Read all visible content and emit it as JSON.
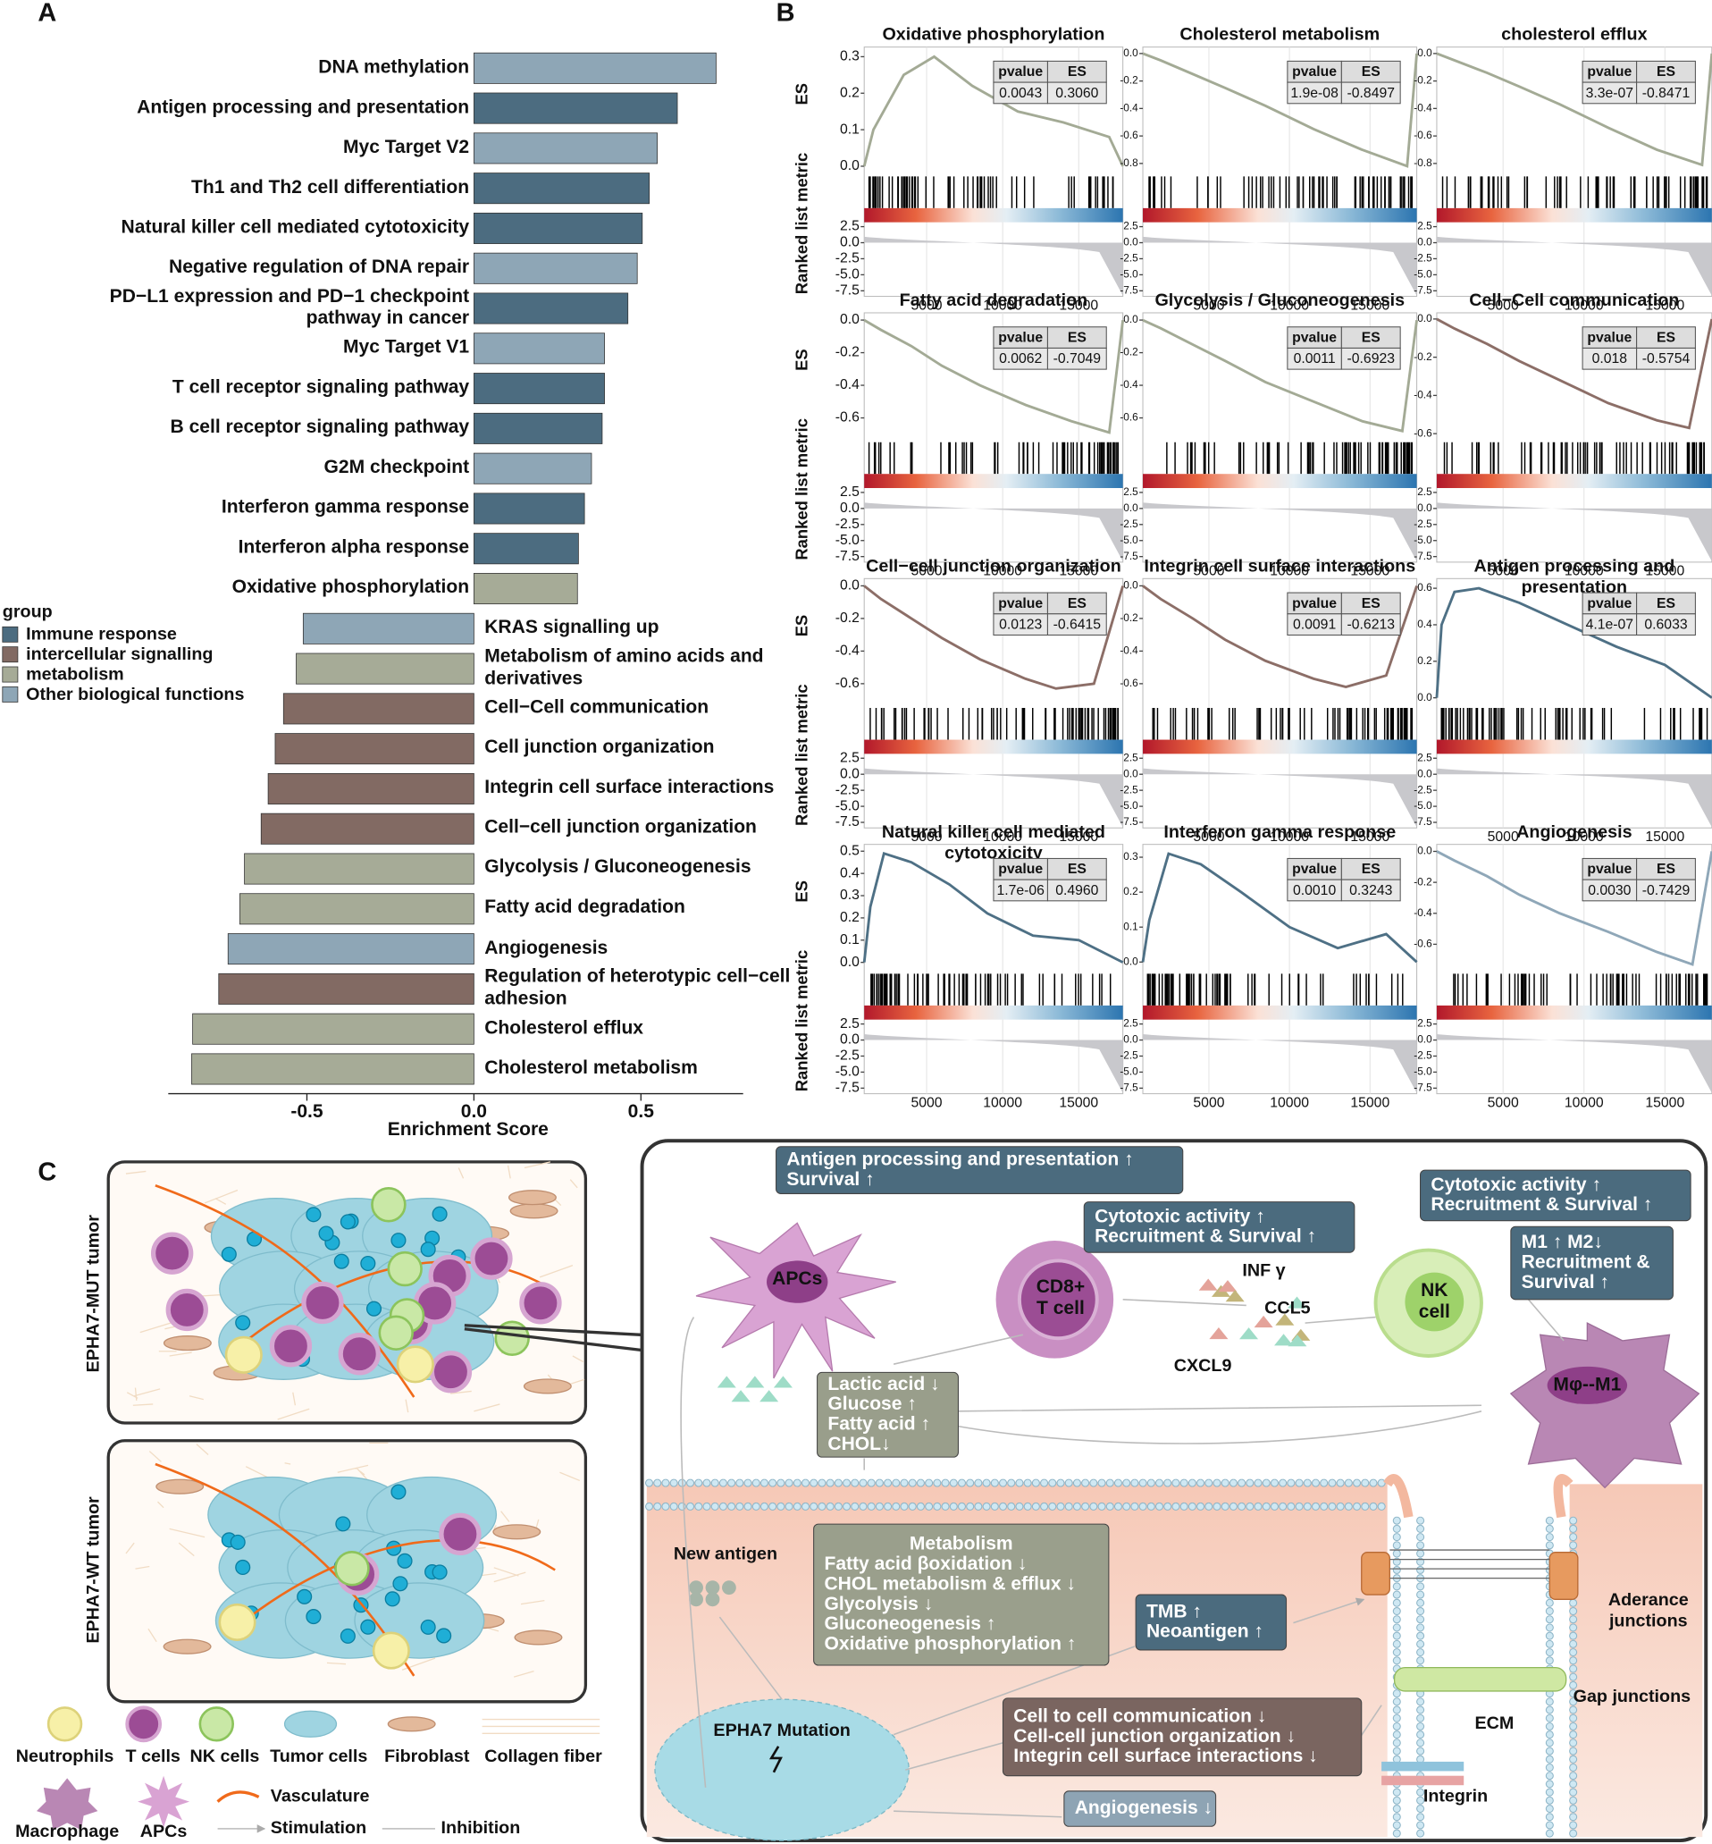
{
  "panel_labels": [
    "A",
    "B",
    "C"
  ],
  "chart_data": [
    {
      "type": "bar",
      "categories": [
        "DNA methylation",
        "Antigen processing and presentation",
        "Myc Target V2",
        "Th1 and Th2 cell differentiation",
        "Natural killer cell mediated cytotoxicity",
        "Negative regulation of DNA repair",
        "PD−L1 expression and PD−1 checkpoint pathway in cancer",
        "Myc Target V1",
        "T cell receptor signaling pathway",
        "B cell receptor signaling pathway",
        "G2M checkpoint",
        "Interferon gamma response",
        "Interferon alpha response",
        "Oxidative phosphorylation",
        "KRAS signalling up",
        "Metabolism of amino acids and derivatives",
        "Cell−Cell communication",
        "Cell junction organization",
        "Integrin cell surface interactions",
        "Cell−cell junction organization",
        "Glycolysis / Gluconeogenesis",
        "Fatty acid degradation",
        "Angiogenesis",
        "Regulation of heterotypic cell−cell adhesion",
        "Cholesterol efflux",
        "Cholesterol metabolism"
      ],
      "series": [
        {
          "name": "Immune response",
          "color": "#4c6c80",
          "values": [
            null,
            0.609,
            null,
            0.525,
            0.504,
            null,
            0.461,
            null,
            0.391,
            0.384,
            null,
            0.331,
            0.313,
            null,
            null,
            null,
            null,
            null,
            null,
            null,
            null,
            null,
            null,
            null,
            null,
            null
          ]
        },
        {
          "name": "intercellular signalling",
          "color": "#826a63",
          "values": [
            null,
            null,
            null,
            null,
            null,
            null,
            null,
            null,
            null,
            null,
            null,
            null,
            null,
            null,
            null,
            null,
            -0.57,
            -0.595,
            -0.616,
            -0.637,
            null,
            null,
            null,
            -0.764,
            null,
            null
          ]
        },
        {
          "name": "metabolism",
          "color": "#a6ab97",
          "values": [
            null,
            null,
            null,
            null,
            null,
            null,
            null,
            null,
            null,
            null,
            null,
            null,
            null,
            0.31,
            null,
            -0.532,
            null,
            null,
            null,
            null,
            -0.687,
            -0.701,
            null,
            null,
            -0.842,
            -0.845
          ]
        },
        {
          "name": "Other biological functions",
          "color": "#8ea6b6",
          "values": [
            0.725,
            null,
            0.549,
            null,
            null,
            0.489,
            null,
            0.391,
            null,
            null,
            0.352,
            null,
            null,
            null,
            -0.511,
            null,
            null,
            null,
            null,
            null,
            null,
            null,
            -0.736,
            null,
            null,
            null
          ]
        }
      ],
      "legend_title": "group",
      "xlim": [
        -0.915,
        0.806
      ],
      "xticks": [
        -0.5,
        {
          "value": 0,
          "label": "0.0"
        },
        0.5
      ],
      "xlabel": "Enrichment Score"
    },
    {
      "type": "line",
      "title": "Oxidative phosphorylation",
      "color": "#a3aa95",
      "table_row": [
        "0.0043",
        "0.3060"
      ],
      "ylim": [
        -0.015,
        0.32
      ],
      "yticks": [
        {
          "value": 0,
          "label": "0.0"
        },
        0.1,
        0.2,
        0.3
      ],
      "x": [
        900,
        1500,
        3500,
        5500,
        8000,
        11000,
        14000,
        17000,
        17900
      ],
      "values": [
        0,
        0.1,
        0.25,
        0.3,
        0.22,
        0.15,
        0.12,
        0.08,
        0
      ]
    },
    {
      "type": "line",
      "title": "Cholesterol metabolism",
      "color": "#a3aa95",
      "table_row": [
        "1.9e-08",
        "-0.8497"
      ],
      "ylim": [
        -0.86,
        0.03
      ],
      "yticks": [
        {
          "value": 0,
          "label": "0.0"
        },
        -0.2,
        -0.4,
        -0.6,
        -0.8
      ],
      "x": [
        900,
        2000,
        4000,
        6000,
        8500,
        11500,
        14500,
        17300,
        17900
      ],
      "values": [
        0,
        -0.05,
        -0.15,
        -0.25,
        -0.38,
        -0.55,
        -0.7,
        -0.82,
        0
      ]
    },
    {
      "type": "line",
      "title": "cholesterol efflux",
      "color": "#a3aa95",
      "table_row": [
        "3.3e-07",
        "-0.8471"
      ],
      "ylim": [
        -0.86,
        0.03
      ],
      "yticks": [
        {
          "value": 0,
          "label": "0.0"
        },
        -0.2,
        -0.4,
        -0.6,
        -0.8
      ],
      "x": [
        900,
        2000,
        4000,
        6000,
        8500,
        11500,
        14500,
        17300,
        17900
      ],
      "values": [
        0,
        -0.05,
        -0.14,
        -0.24,
        -0.37,
        -0.54,
        -0.7,
        -0.81,
        0
      ]
    },
    {
      "type": "line",
      "title": "Fatty acid degradation",
      "color": "#a3aa95",
      "table_row": [
        "0.0062",
        "-0.7049"
      ],
      "ylim": [
        -0.72,
        0.03
      ],
      "yticks": [
        {
          "value": 0,
          "label": "0.0"
        },
        -0.2,
        -0.4,
        -0.6
      ],
      "x": [
        900,
        2000,
        4000,
        6000,
        8500,
        11500,
        14500,
        17000,
        17900
      ],
      "values": [
        0,
        -0.06,
        -0.16,
        -0.28,
        -0.4,
        -0.52,
        -0.62,
        -0.69,
        0
      ]
    },
    {
      "type": "line",
      "title": "Glycolysis / Gluconeogenesis",
      "color": "#a3aa95",
      "table_row": [
        "0.0011",
        "-0.6923"
      ],
      "ylim": [
        -0.72,
        0.03
      ],
      "yticks": [
        {
          "value": 0,
          "label": "0.0"
        },
        -0.2,
        -0.4,
        -0.6
      ],
      "x": [
        900,
        2000,
        4000,
        6000,
        8500,
        11500,
        14500,
        17000,
        17900
      ],
      "values": [
        0,
        -0.05,
        -0.15,
        -0.25,
        -0.38,
        -0.5,
        -0.62,
        -0.68,
        0
      ]
    },
    {
      "type": "line",
      "title": "Cell−Cell communication",
      "color": "#8c6e67",
      "table_row": [
        "0.018",
        "-0.5754"
      ],
      "ylim": [
        -0.62,
        0.02
      ],
      "yticks": [
        {
          "value": 0,
          "label": "0.0"
        },
        -0.2,
        -0.4,
        -0.6
      ],
      "x": [
        900,
        2000,
        4000,
        6000,
        8500,
        11500,
        14500,
        16500,
        17900
      ],
      "values": [
        0,
        -0.05,
        -0.13,
        -0.22,
        -0.32,
        -0.44,
        -0.53,
        -0.57,
        0
      ]
    },
    {
      "type": "line",
      "title": "Cell−cell junction organization",
      "color": "#8c6e67",
      "table_row": [
        "0.0123",
        "-0.6415"
      ],
      "ylim": [
        -0.72,
        0.03
      ],
      "yticks": [
        {
          "value": 0,
          "label": "0.0"
        },
        -0.2,
        -0.4,
        -0.6
      ],
      "x": [
        900,
        2000,
        4000,
        6000,
        8500,
        11500,
        13500,
        16000,
        17900
      ],
      "values": [
        0,
        -0.08,
        -0.2,
        -0.32,
        -0.45,
        -0.57,
        -0.63,
        -0.6,
        0
      ]
    },
    {
      "type": "line",
      "title": "Integrin cell surface interactions",
      "color": "#8c6e67",
      "table_row": [
        "0.0091",
        "-0.6213"
      ],
      "ylim": [
        -0.72,
        0.03
      ],
      "yticks": [
        {
          "value": 0,
          "label": "0.0"
        },
        -0.2,
        -0.4,
        -0.6
      ],
      "x": [
        900,
        2000,
        4000,
        6000,
        8500,
        11500,
        13500,
        16000,
        17900
      ],
      "values": [
        0,
        -0.08,
        -0.2,
        -0.33,
        -0.46,
        -0.57,
        -0.62,
        -0.55,
        0
      ]
    },
    {
      "type": "line",
      "title": "Antigen processing and presentation",
      "color": "#4e7085",
      "table_row": [
        "4.1e-07",
        "0.6033"
      ],
      "ylim": [
        -0.03,
        0.64
      ],
      "yticks": [
        {
          "value": 0,
          "label": "0.0"
        },
        0.2,
        0.4,
        0.6
      ],
      "x": [
        900,
        1200,
        2000,
        3500,
        6000,
        9000,
        12000,
        15000,
        17900
      ],
      "values": [
        0,
        0.4,
        0.58,
        0.6,
        0.52,
        0.4,
        0.28,
        0.18,
        0
      ]
    },
    {
      "type": "line",
      "title": "Natural killer cell mediated cytotoxicity",
      "color": "#4e7085",
      "table_row": [
        "1.7e-06",
        "0.4960"
      ],
      "ylim": [
        -0.03,
        0.52
      ],
      "yticks": [
        {
          "value": 0,
          "label": "0.0"
        },
        0.1,
        0.2,
        0.3,
        0.4,
        0.5
      ],
      "x": [
        900,
        1300,
        2200,
        4000,
        6500,
        9000,
        12000,
        15000,
        17900
      ],
      "values": [
        0,
        0.25,
        0.49,
        0.45,
        0.35,
        0.22,
        0.12,
        0.1,
        0
      ]
    },
    {
      "type": "line",
      "title": "Interferon gamma response",
      "color": "#4e7085",
      "table_row": [
        "0.0010",
        "0.3243"
      ],
      "ylim": [
        -0.02,
        0.33
      ],
      "yticks": [
        {
          "value": 0,
          "label": "0.0"
        },
        0.1,
        0.2,
        0.3
      ],
      "x": [
        900,
        1300,
        2500,
        4500,
        7000,
        10000,
        13000,
        16000,
        17900
      ],
      "values": [
        0,
        0.12,
        0.31,
        0.28,
        0.2,
        0.1,
        0.04,
        0.08,
        0
      ]
    },
    {
      "type": "line",
      "title": "Angiogenesis",
      "color": "#8fa7b8",
      "table_row": [
        "0.0030",
        "-0.7429"
      ],
      "ylim": [
        -0.76,
        0.03
      ],
      "yticks": [
        {
          "value": 0,
          "label": "0.0"
        },
        -0.2,
        -0.4,
        -0.6
      ],
      "x": [
        900,
        2000,
        4000,
        6000,
        8500,
        11500,
        14500,
        16700,
        17900
      ],
      "values": [
        0,
        -0.06,
        -0.16,
        -0.28,
        -0.4,
        -0.52,
        -0.65,
        -0.73,
        0
      ]
    }
  ],
  "panel_b": {
    "table_header": [
      "pvalue",
      "ES"
    ],
    "xlim": [
      900,
      17900
    ],
    "xticks": [
      5000,
      10000,
      15000
    ],
    "rank_ylim": [
      -8,
      3
    ],
    "rank_yticks": [
      2.5,
      {
        "value": 0,
        "label": "0.0"
      },
      -2.5,
      {
        "value": -5,
        "label": "-5.0"
      },
      -7.5
    ],
    "es_label": "ES",
    "rank_label": "Ranked list metric"
  },
  "panel_c": {
    "tumor_labels": [
      "EPHA7-MUT tumor",
      "EPHA7-WT tumor"
    ],
    "boxes": [
      {
        "lines": [
          "Antigen processing and presentation ↑",
          "Survival ↑"
        ]
      },
      {
        "lines": [
          "Cytotoxic activity ↑",
          "Recruitment & Survival ↑"
        ]
      },
      {
        "lines": [
          "Cytotoxic activity ↑",
          "Recruitment & Survival ↑"
        ]
      },
      {
        "lines": [
          "M1 ↑ M2↓",
          "Recruitment &",
          "Survival ↑"
        ]
      },
      {
        "lines": [
          "Lactic acid ↓",
          "Glucose ↑",
          "Fatty acid ↑",
          "CHOL↓"
        ]
      },
      {
        "lines": [
          "Metabolism",
          "Fatty acid βoxidation ↓",
          "CHOL metabolism & efflux ↓",
          "Glycolysis ↓",
          "Gluconeogenesis ↑",
          "Oxidative phosphorylation ↑"
        ]
      },
      {
        "lines": [
          "TMB ↑",
          "Neoantigen ↑"
        ]
      },
      {
        "lines": [
          "Cell to cell communication ↓",
          "Cell-cell junction organization  ↓",
          "Integrin cell surface interactions ↓"
        ]
      },
      {
        "lines": [
          "Angiogenesis ↓"
        ]
      }
    ],
    "cells": [
      {
        "lines": [
          "APCs"
        ]
      },
      {
        "lines": [
          "CD8+",
          "T cell"
        ]
      },
      {
        "lines": [
          "NK",
          "cell"
        ]
      },
      {
        "lines": [
          "Mφ--M1"
        ]
      }
    ],
    "labels": [
      {
        "lines": [
          "INF γ"
        ]
      },
      {
        "lines": [
          "CCL5"
        ]
      },
      {
        "lines": [
          "CXCL9"
        ]
      },
      {
        "lines": [
          "New antigen"
        ]
      },
      {
        "lines": [
          "EPHA7 Mutation"
        ]
      },
      {
        "lines": [
          "Aderance",
          "junctions"
        ]
      },
      {
        "lines": [
          "Gap junctions"
        ]
      },
      {
        "lines": [
          "ECM"
        ]
      },
      {
        "lines": [
          "Integrin"
        ]
      }
    ],
    "legend": [
      "Neutrophils",
      "T cells",
      "NK cells",
      "Tumor cells",
      "Fibroblast",
      "Collagen fiber",
      "Macrophage",
      "APCs",
      "Vasculature",
      "Stimulation",
      "Inhibition"
    ]
  }
}
